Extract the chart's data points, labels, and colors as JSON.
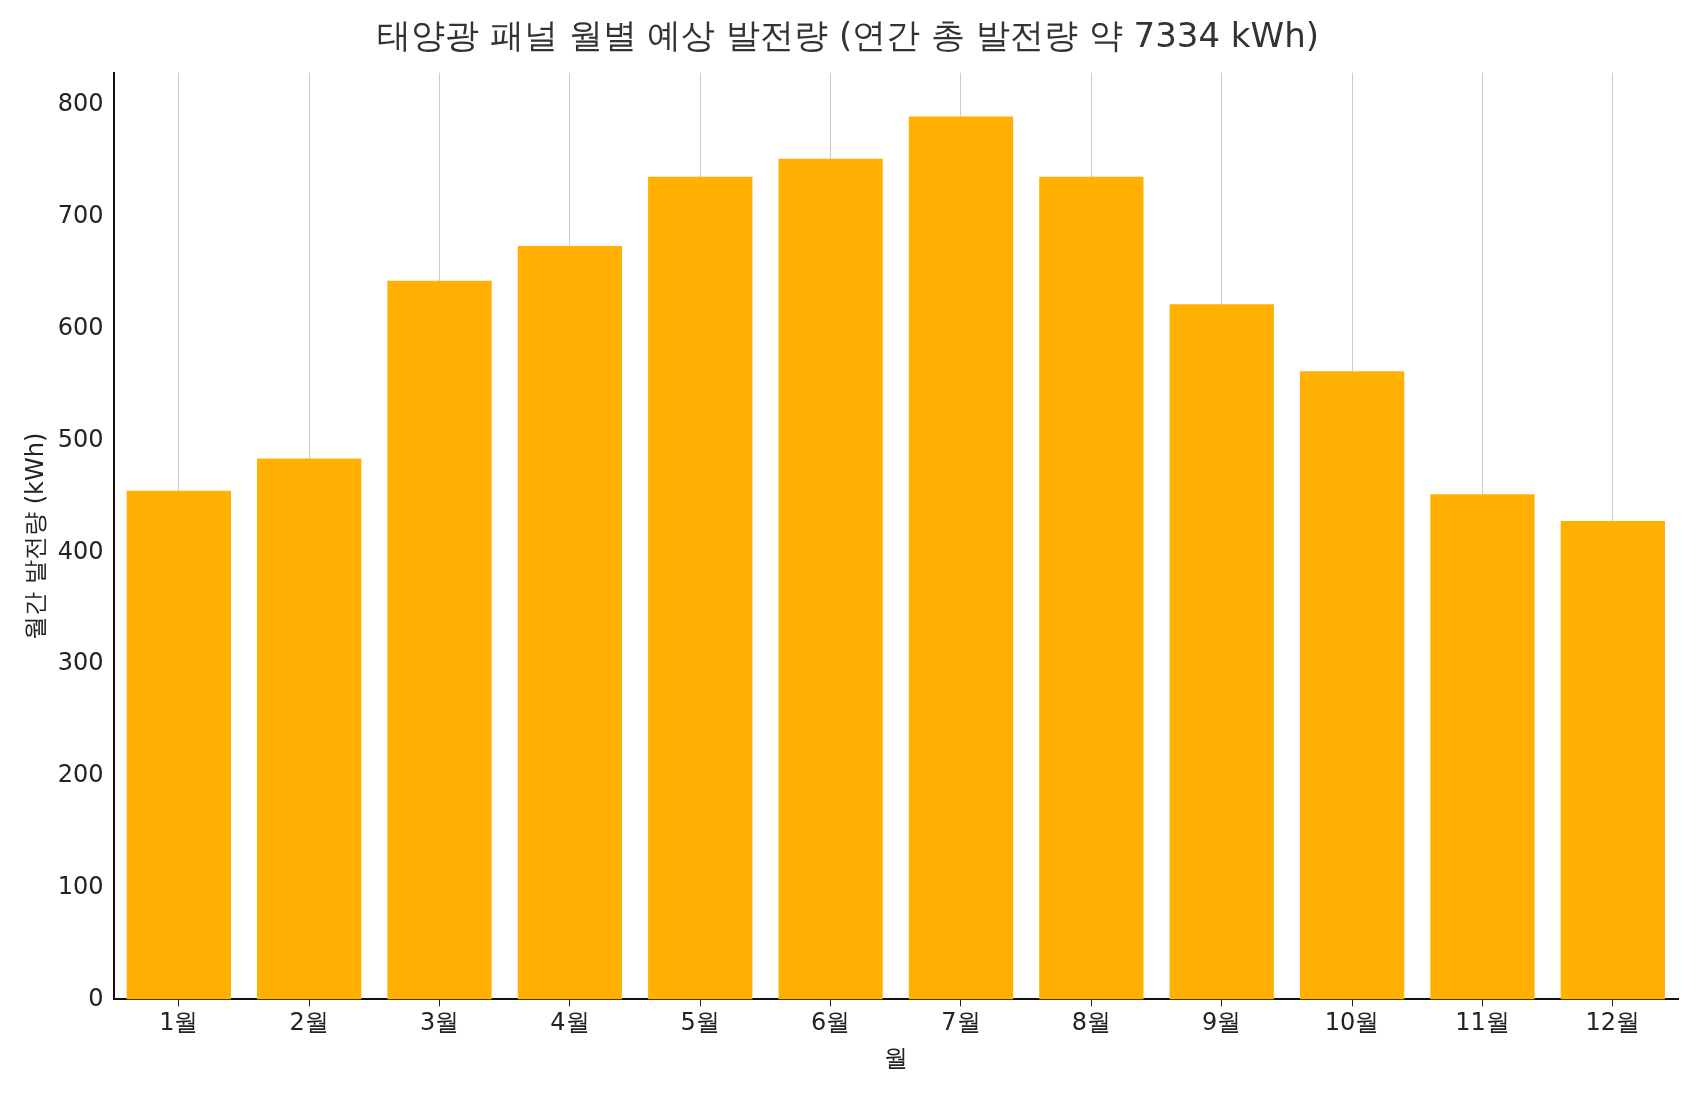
{
  "chart_data": {
    "type": "bar",
    "title": "태양광 패널 월별 예상 발전량 (연간 총 발전량 약 7334 kWh)",
    "xlabel": "월",
    "ylabel": "월간 발전량 (kWh)",
    "categories": [
      "1월",
      "2월",
      "3월",
      "4월",
      "5월",
      "6월",
      "7월",
      "8월",
      "9월",
      "10월",
      "11월",
      "12월"
    ],
    "values": [
      455,
      484,
      643,
      674,
      736,
      752,
      790,
      736,
      622,
      562,
      452,
      428
    ],
    "color": "#ffb000",
    "ylim": [
      0,
      829
    ],
    "yticks": [
      0,
      100,
      200,
      300,
      400,
      500,
      600,
      700,
      800
    ],
    "grid": "x"
  }
}
